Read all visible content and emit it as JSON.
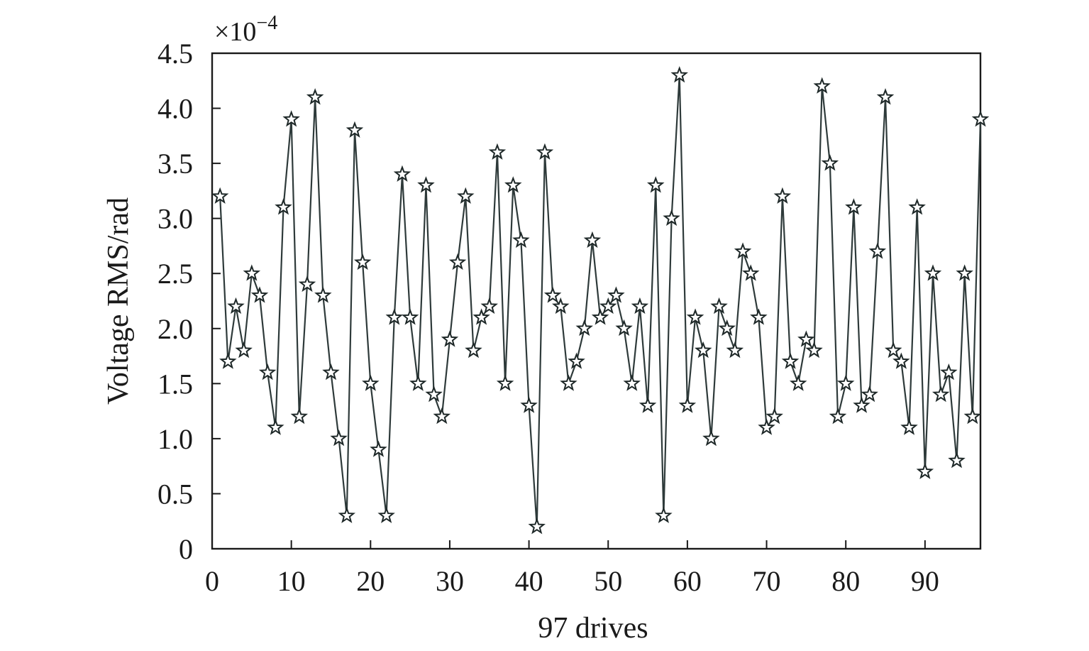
{
  "chart_data": {
    "type": "line",
    "title": "",
    "xlabel": "97 drives",
    "ylabel": "Voltage RMS/rad",
    "y_multiplier": "×10",
    "y_multiplier_exp": "−4",
    "xlim": [
      0,
      97
    ],
    "ylim": [
      0,
      4.5
    ],
    "xticks": [
      0,
      10,
      20,
      30,
      40,
      50,
      60,
      70,
      80,
      90
    ],
    "xtick_labels": [
      "0",
      "10",
      "20",
      "30",
      "40",
      "50",
      "60",
      "70",
      "80",
      "90"
    ],
    "yticks": [
      0,
      0.5,
      1.0,
      1.5,
      2.0,
      2.5,
      3.0,
      3.5,
      4.0,
      4.5
    ],
    "ytick_labels": [
      "0",
      "0.5",
      "1.0",
      "1.5",
      "2.0",
      "2.5",
      "3.0",
      "3.5",
      "4.0",
      "4.5"
    ],
    "grid": false,
    "marker": "star",
    "line_color": "#2e3a3a",
    "x": [
      1,
      2,
      3,
      4,
      5,
      6,
      7,
      8,
      9,
      10,
      11,
      12,
      13,
      14,
      15,
      16,
      17,
      18,
      19,
      20,
      21,
      22,
      23,
      24,
      25,
      26,
      27,
      28,
      29,
      30,
      31,
      32,
      33,
      34,
      35,
      36,
      37,
      38,
      39,
      40,
      41,
      42,
      43,
      44,
      45,
      46,
      47,
      48,
      49,
      50,
      51,
      52,
      53,
      54,
      55,
      56,
      57,
      58,
      59,
      60,
      61,
      62,
      63,
      64,
      65,
      66,
      67,
      68,
      69,
      70,
      71,
      72,
      73,
      74,
      75,
      76,
      77,
      78,
      79,
      80,
      81,
      82,
      83,
      84,
      85,
      86,
      87,
      88,
      89,
      90,
      91,
      92,
      93,
      94,
      95,
      96,
      97
    ],
    "series": [
      {
        "values": [
          3.2,
          1.7,
          2.2,
          1.8,
          2.5,
          2.3,
          1.6,
          1.1,
          3.1,
          3.9,
          1.2,
          2.4,
          4.1,
          2.3,
          1.6,
          1.0,
          0.3,
          3.8,
          2.6,
          1.5,
          0.9,
          0.3,
          2.1,
          3.4,
          2.1,
          1.5,
          3.3,
          1.4,
          1.2,
          1.9,
          2.6,
          3.2,
          1.8,
          2.1,
          2.2,
          3.6,
          1.5,
          3.3,
          2.8,
          1.3,
          0.2,
          3.6,
          2.3,
          2.2,
          1.5,
          1.7,
          2.0,
          2.8,
          2.1,
          2.2,
          2.3,
          2.0,
          1.5,
          2.2,
          1.3,
          3.3,
          0.3,
          3.0,
          4.3,
          1.3,
          2.1,
          1.8,
          1.0,
          2.2,
          2.0,
          1.8,
          2.7,
          2.5,
          2.1,
          1.1,
          1.2,
          3.2,
          1.7,
          1.5,
          1.9,
          1.8,
          4.2,
          3.5,
          1.2,
          1.5,
          3.1,
          1.3,
          1.4,
          2.7,
          4.1,
          1.8,
          1.7,
          1.1,
          3.1,
          0.7,
          2.5,
          1.4,
          1.6,
          0.8,
          2.5,
          1.2,
          3.9
        ]
      }
    ]
  }
}
